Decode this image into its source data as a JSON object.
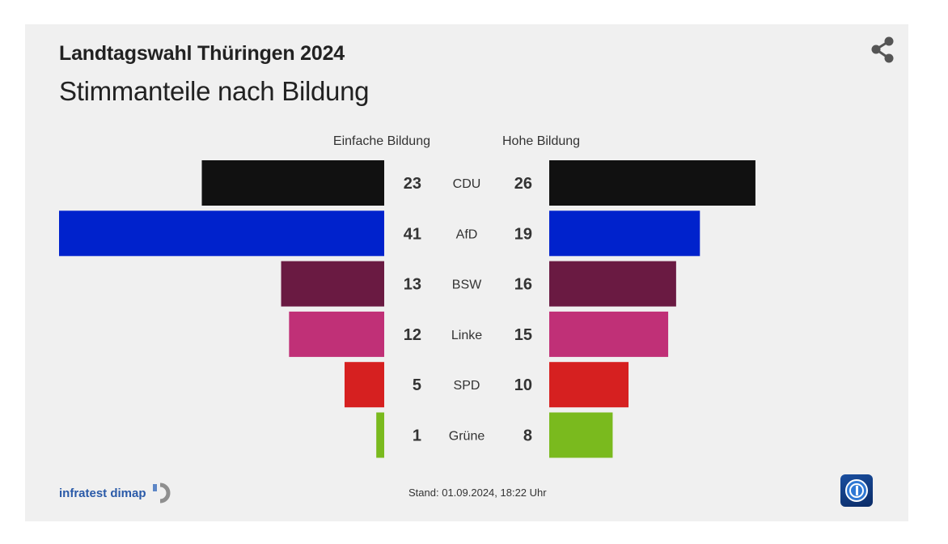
{
  "header": {
    "title": "Landtagswahl Thüringen 2024",
    "subtitle": "Stimmanteile nach Bildung"
  },
  "icons": {
    "share": "share-icon",
    "source_logo": "infratest-dimap-logo-icon",
    "broadcaster_logo": "tagesschau-logo-icon"
  },
  "chart_data": {
    "type": "bar",
    "orientation": "horizontal-butterfly",
    "categories": [
      "CDU",
      "AfD",
      "BSW",
      "Linke",
      "SPD",
      "Grüne"
    ],
    "series": [
      {
        "name": "Einfache Bildung",
        "side": "left",
        "values": [
          23,
          41,
          13,
          12,
          5,
          1
        ]
      },
      {
        "name": "Hohe Bildung",
        "side": "right",
        "values": [
          26,
          19,
          16,
          15,
          10,
          8
        ]
      }
    ],
    "colors": [
      "#111111",
      "#0022cc",
      "#6a1a42",
      "#c03077",
      "#d62020",
      "#7aba1e"
    ],
    "xlim": [
      0,
      41
    ],
    "unit": "%"
  },
  "footer": {
    "source": "infratest dimap",
    "stand_label": "Stand:",
    "stand_value": "01.09.2024, 18:22 Uhr"
  }
}
